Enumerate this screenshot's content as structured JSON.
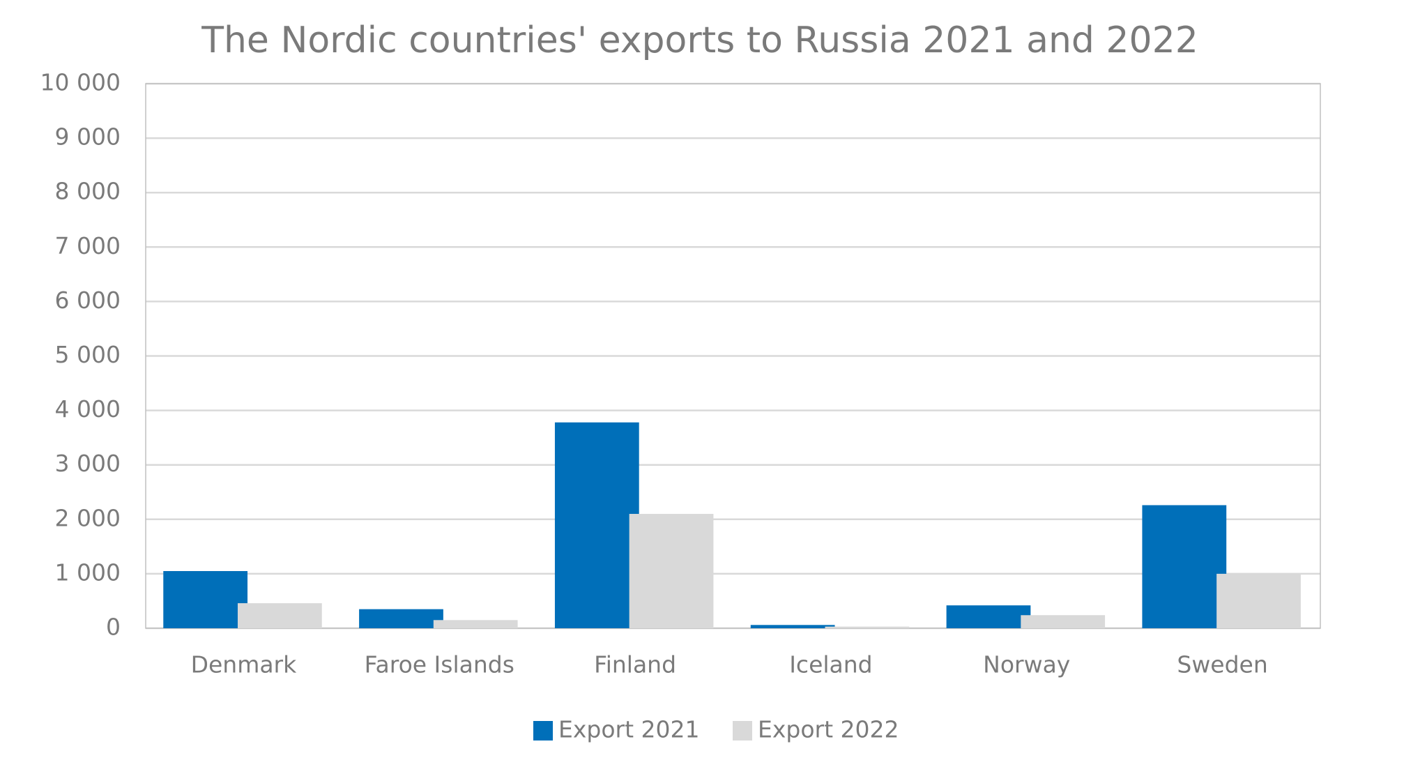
{
  "chart_data": {
    "type": "bar",
    "title": "The Nordic countries' exports to Russia 2021 and 2022",
    "categories": [
      "Denmark",
      "Faroe Islands",
      "Finland",
      "Iceland",
      "Norway",
      "Sweden"
    ],
    "series": [
      {
        "name": "Export 2021",
        "color": "#006fb9",
        "values": [
          1050,
          350,
          3780,
          60,
          420,
          2260
        ]
      },
      {
        "name": "Export 2022",
        "color": "#d9d9d9",
        "values": [
          460,
          150,
          2100,
          30,
          240,
          1000
        ]
      }
    ],
    "ylim": [
      0,
      10000
    ],
    "yticks": [
      0,
      {
        "value": 1000,
        "label": "1 000"
      },
      {
        "value": 2000,
        "label": "2 000"
      },
      {
        "value": 3000,
        "label": "3 000"
      },
      {
        "value": 4000,
        "label": "4 000"
      },
      {
        "value": 5000,
        "label": "5 000"
      },
      {
        "value": 6000,
        "label": "6 000"
      },
      {
        "value": 7000,
        "label": "7 000"
      },
      {
        "value": 8000,
        "label": "8 000"
      },
      {
        "value": 9000,
        "label": "9 000"
      },
      {
        "value": 10000,
        "label": "10 000"
      }
    ],
    "grid": true,
    "legend": "bottom"
  }
}
